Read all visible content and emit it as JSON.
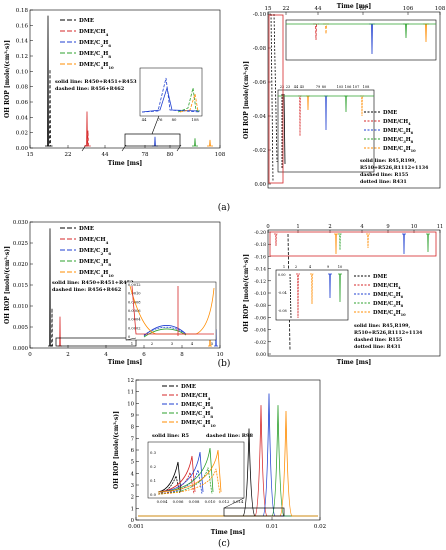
{
  "figure": {
    "label_a": "(a)",
    "label_b": "(b)",
    "label_c": "(c)"
  },
  "colors": {
    "DME": "#000000",
    "DME/CH4": "#d62728",
    "DME/C2H6": "#1f3fd0",
    "DME/C3H8": "#2ca02c",
    "DME/C4H10": "#ff8c00"
  },
  "chart_data": [
    {
      "panel": "a-left",
      "type": "line",
      "ylabel": "OH ROP [mole/(cm³·s)]",
      "xlabel": "Time [ms]",
      "ylim": [
        0,
        0.18
      ],
      "yticks": [
        "0.00",
        "0.02",
        "0.04",
        "0.06",
        "0.08",
        "0.10",
        "0.12",
        "0.14",
        "0.16",
        "0.18"
      ],
      "xticks": [
        "15",
        "22",
        "44",
        "78",
        "80",
        "108"
      ],
      "legend": [
        "DME",
        "DME/CH4",
        "DME/C2H6",
        "DME/C3H8",
        "DME/C4H10"
      ],
      "annotations": [
        "solid line: R450+R451+R453",
        "dashed line: R456+R462"
      ],
      "inset_xticks": [
        "44",
        "76",
        "80",
        "108"
      ],
      "peaks": [
        {
          "series": "DME",
          "x": 17.5,
          "y": 0.17
        },
        {
          "series": "DME/CH4",
          "x": 25,
          "y": 0.04
        },
        {
          "series": "DME/C2H6",
          "x": 79,
          "y": 0.015
        },
        {
          "series": "DME/C3H8",
          "x": 105,
          "y": 0.02
        }
      ]
    },
    {
      "panel": "a-right",
      "type": "line",
      "ylabel": "OH ROP [mole/(cm³·s)]",
      "xlabel": "Time [ms]",
      "ylim": [
        -0.1,
        0.0
      ],
      "yticks": [
        "0.00",
        "-0.02",
        "-0.04",
        "-0.06",
        "-0.08",
        "-0.10"
      ],
      "xticks": [
        "15",
        "22",
        "44",
        "80",
        "106",
        "108"
      ],
      "inset_xticks": [
        "22",
        "23",
        "44",
        "45",
        "79",
        "80",
        "105",
        "106",
        "107",
        "108"
      ],
      "inset_yticks": [
        "0.00",
        "-0.03",
        "-0.06"
      ],
      "legend": [
        "DME",
        "DME/CH4",
        "DME/C2H6",
        "DME/C3H8",
        "DME/C4H10"
      ],
      "annotations": [
        "solid line: R45,R199,",
        "R510+R526,R1112+1134",
        "dashed line: R155",
        "dotted line: R431"
      ]
    },
    {
      "panel": "b-left",
      "type": "line",
      "ylabel": "OH ROP [mole/(cm³·s)]",
      "xlabel": "Time [ms]",
      "ylim": [
        0,
        0.03
      ],
      "yticks": [
        "0.000",
        "0.005",
        "0.010",
        "0.015",
        "0.020",
        "0.025",
        "0.030"
      ],
      "xticks": [
        "0",
        "2",
        "4",
        "6",
        "8",
        "10"
      ],
      "legend": [
        "DME",
        "DME/CH4",
        "DME/C2H6",
        "DME/C3H8",
        "DME/C4H10"
      ],
      "annotations": [
        "solid line: R450+R451+R453",
        "dashed line: R456+R462"
      ],
      "inset_xticks": [
        "1",
        "2",
        "3",
        "4",
        "5"
      ],
      "inset_yticks": [
        "0",
        "0.0002",
        "0.0004",
        "0.0006",
        "0.0008",
        "0.0010",
        "0.0012"
      ]
    },
    {
      "panel": "b-right",
      "type": "line",
      "ylabel": "OH ROP [mole/(cm³·s)]",
      "xlabel": "Time [ms]",
      "ylim": [
        -0.2,
        0.0
      ],
      "yticks": [
        "0.00",
        "-0.02",
        "-0.04",
        "-0.06",
        "-0.08",
        "-0.10",
        "-0.12",
        "-0.14",
        "-0.16",
        "-0.18",
        "-0.20"
      ],
      "xticks": [
        "0",
        "1",
        "2",
        "4",
        "9",
        "10",
        "11"
      ],
      "inset_xticks": [
        "1",
        "2",
        "4",
        "9",
        "10"
      ],
      "inset_yticks": [
        "0.00",
        "-0.04",
        "-0.08"
      ],
      "legend": [
        "DME",
        "DME/CH4",
        "DME/C2H6",
        "DME/C3H8",
        "DME/C4H10"
      ],
      "annotations": [
        "solid line: R45,R199,",
        "R510+R526,R1112+1134",
        "dashed line: R155",
        "dotted line: R431"
      ]
    },
    {
      "panel": "c",
      "type": "line",
      "ylabel": "OH ROP [mole/(cm³·s)]",
      "xlabel": "Time [ms]",
      "ylim": [
        0,
        12
      ],
      "yticks": [
        "0",
        "1",
        "2",
        "3",
        "4",
        "5",
        "6",
        "7",
        "8",
        "9",
        "10",
        "11",
        "12"
      ],
      "xticks": [
        "0.001",
        "0.01",
        "0.02"
      ],
      "legend": [
        "DME",
        "DME/CH4",
        "DME/C2H6",
        "DME/C3H8",
        "DME/C4H10"
      ],
      "annotations": [
        "solid line: R5",
        "dashed line: R98"
      ],
      "inset_xticks": [
        "0.004",
        "0.006",
        "0.008",
        "0.010",
        "0.012",
        "0.014"
      ],
      "inset_yticks": [
        "0.0",
        "0.1",
        "0.2",
        "0.3"
      ],
      "peaks": [
        {
          "series": "DME",
          "x": 0.0068,
          "y": 7.5
        },
        {
          "series": "DME/CH4",
          "x": 0.0088,
          "y": 9.5
        },
        {
          "series": "DME/C2H6",
          "x": 0.0099,
          "y": 10.5
        },
        {
          "series": "DME/C3H8",
          "x": 0.0114,
          "y": 9.5
        },
        {
          "series": "DME/C4H10",
          "x": 0.0124,
          "y": 9.0
        }
      ]
    }
  ]
}
